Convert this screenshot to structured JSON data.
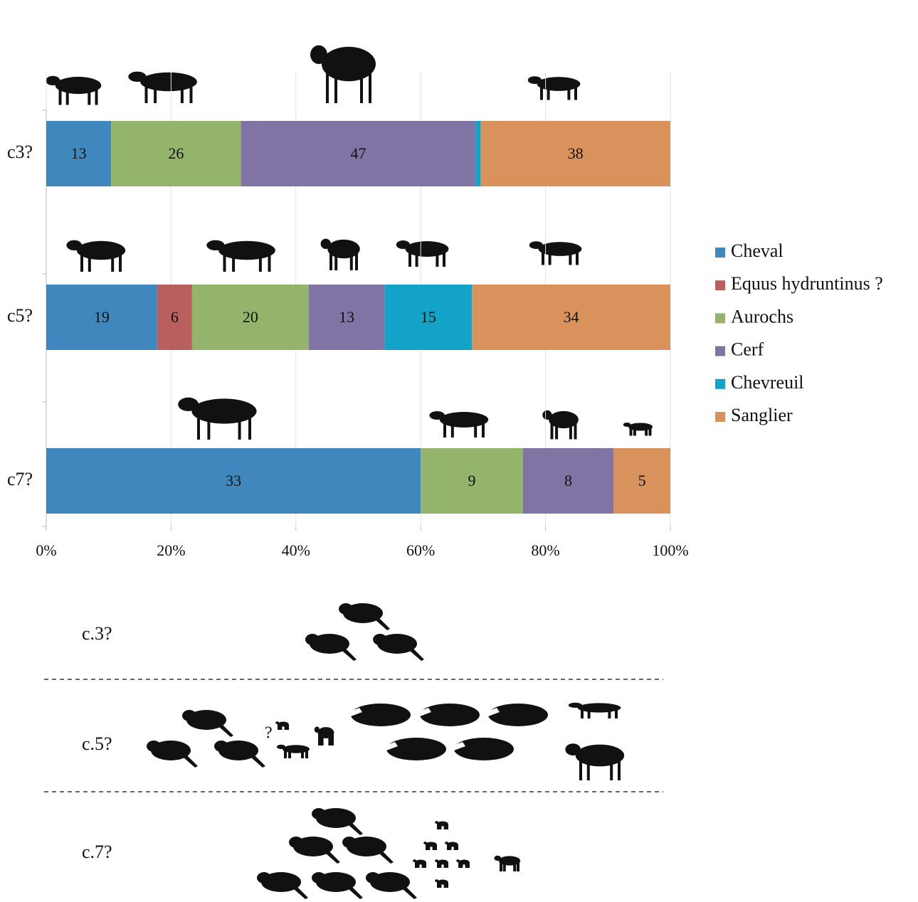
{
  "chart_data": {
    "type": "stacked-bar-percent",
    "categories": [
      "c3?",
      "c5?",
      "c7?"
    ],
    "series": [
      {
        "name": "Cheval",
        "color": "#3f87bd",
        "values": [
          13,
          19,
          33
        ]
      },
      {
        "name": "Equus hydruntinus ?",
        "color": "#b9605e",
        "values": [
          null,
          6,
          null
        ]
      },
      {
        "name": "Aurochs",
        "color": "#94b36b",
        "values": [
          26,
          20,
          9
        ]
      },
      {
        "name": "Cerf",
        "color": "#7f74a3",
        "values": [
          47,
          13,
          8
        ]
      },
      {
        "name": "Chevreuil",
        "color": "#13a3c8",
        "values": [
          1,
          15,
          null
        ]
      },
      {
        "name": "Sanglier",
        "color": "#d9925c",
        "values": [
          38,
          34,
          5
        ]
      }
    ],
    "xlim": [
      0,
      100
    ],
    "xticks": [
      {
        "value": 0,
        "label": "0%"
      },
      {
        "value": 20,
        "label": "20%"
      },
      {
        "value": 40,
        "label": "40%"
      },
      {
        "value": 60,
        "label": "60%"
      },
      {
        "value": 80,
        "label": "80%"
      },
      {
        "value": 100,
        "label": "100%"
      }
    ],
    "grid": true,
    "legend": "right"
  },
  "lower_panel": {
    "rows": [
      "c.3?",
      "c.5?",
      "c.7?"
    ],
    "question_mark": "?"
  }
}
